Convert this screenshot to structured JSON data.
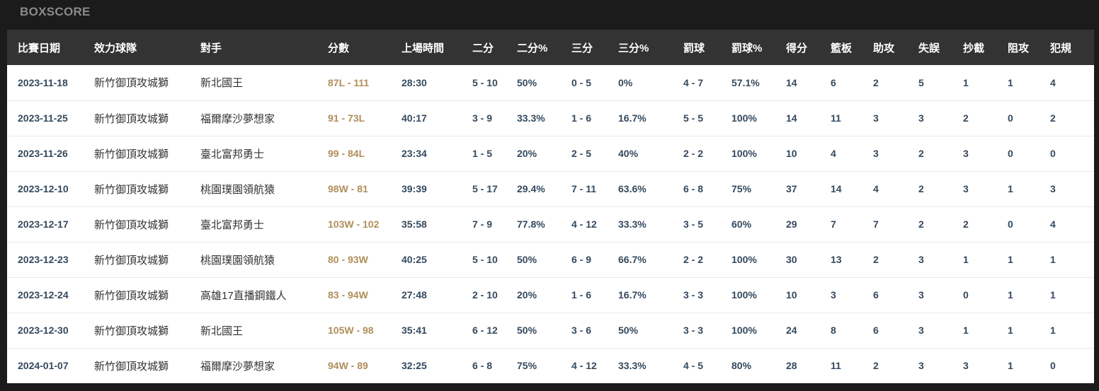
{
  "page": {
    "title": "BOXSCORE"
  },
  "colors": {
    "page_bg": "#1b1b1b",
    "title_text": "#8a8a8a",
    "header_bg": "#333333",
    "header_text": "#ffffff",
    "body_bg": "#ffffff",
    "stat_text": "#34495e",
    "name_text": "#333333",
    "score_link": "#b08e5a",
    "row_border": "#e9e9e9"
  },
  "table": {
    "columns": [
      {
        "key": "date",
        "label": "比賽日期"
      },
      {
        "key": "team",
        "label": "效力球隊"
      },
      {
        "key": "opponent",
        "label": "對手"
      },
      {
        "key": "score",
        "label": "分數"
      },
      {
        "key": "minutes",
        "label": "上場時間"
      },
      {
        "key": "fg2",
        "label": "二分"
      },
      {
        "key": "fg2-pct",
        "label": "二分%"
      },
      {
        "key": "fg3",
        "label": "三分"
      },
      {
        "key": "fg3-pct",
        "label": "三分%"
      },
      {
        "key": "ft",
        "label": "罰球"
      },
      {
        "key": "ft-pct",
        "label": "罰球%"
      },
      {
        "key": "points",
        "label": "得分"
      },
      {
        "key": "rebounds",
        "label": "籃板"
      },
      {
        "key": "assists",
        "label": "助攻"
      },
      {
        "key": "turnovers",
        "label": "失誤"
      },
      {
        "key": "steals",
        "label": "抄截"
      },
      {
        "key": "blocks",
        "label": "阻攻"
      },
      {
        "key": "fouls",
        "label": "犯規"
      }
    ],
    "rows": [
      [
        "2023-11-18",
        "新竹御頂攻城獅",
        "新北國王",
        "87L - 111",
        "28:30",
        "5 - 10",
        "50%",
        "0 - 5",
        "0%",
        "4 - 7",
        "57.1%",
        "14",
        "6",
        "2",
        "5",
        "1",
        "1",
        "4"
      ],
      [
        "2023-11-25",
        "新竹御頂攻城獅",
        "福爾摩沙夢想家",
        "91 - 73L",
        "40:17",
        "3 - 9",
        "33.3%",
        "1 - 6",
        "16.7%",
        "5 - 5",
        "100%",
        "14",
        "11",
        "3",
        "3",
        "2",
        "0",
        "2"
      ],
      [
        "2023-11-26",
        "新竹御頂攻城獅",
        "臺北富邦勇士",
        "99 - 84L",
        "23:34",
        "1 - 5",
        "20%",
        "2 - 5",
        "40%",
        "2 - 2",
        "100%",
        "10",
        "4",
        "3",
        "2",
        "3",
        "0",
        "0"
      ],
      [
        "2023-12-10",
        "新竹御頂攻城獅",
        "桃園璞園領航猿",
        "98W - 81",
        "39:39",
        "5 - 17",
        "29.4%",
        "7 - 11",
        "63.6%",
        "6 - 8",
        "75%",
        "37",
        "14",
        "4",
        "2",
        "3",
        "1",
        "3"
      ],
      [
        "2023-12-17",
        "新竹御頂攻城獅",
        "臺北富邦勇士",
        "103W - 102",
        "35:58",
        "7 - 9",
        "77.8%",
        "4 - 12",
        "33.3%",
        "3 - 5",
        "60%",
        "29",
        "7",
        "7",
        "2",
        "2",
        "0",
        "4"
      ],
      [
        "2023-12-23",
        "新竹御頂攻城獅",
        "桃園璞園領航猿",
        "80 - 93W",
        "40:25",
        "5 - 10",
        "50%",
        "6 - 9",
        "66.7%",
        "2 - 2",
        "100%",
        "30",
        "13",
        "2",
        "3",
        "1",
        "1",
        "1"
      ],
      [
        "2023-12-24",
        "新竹御頂攻城獅",
        "高雄17直播鋼鐵人",
        "83 - 94W",
        "27:48",
        "2 - 10",
        "20%",
        "1 - 6",
        "16.7%",
        "3 - 3",
        "100%",
        "10",
        "3",
        "6",
        "3",
        "0",
        "1",
        "1"
      ],
      [
        "2023-12-30",
        "新竹御頂攻城獅",
        "新北國王",
        "105W - 98",
        "35:41",
        "6 - 12",
        "50%",
        "3 - 6",
        "50%",
        "3 - 3",
        "100%",
        "24",
        "8",
        "6",
        "3",
        "1",
        "1",
        "1"
      ],
      [
        "2024-01-07",
        "新竹御頂攻城獅",
        "福爾摩沙夢想家",
        "94W - 89",
        "32:25",
        "6 - 8",
        "75%",
        "4 - 12",
        "33.3%",
        "4 - 5",
        "80%",
        "28",
        "11",
        "2",
        "3",
        "3",
        "1",
        "0"
      ]
    ]
  }
}
